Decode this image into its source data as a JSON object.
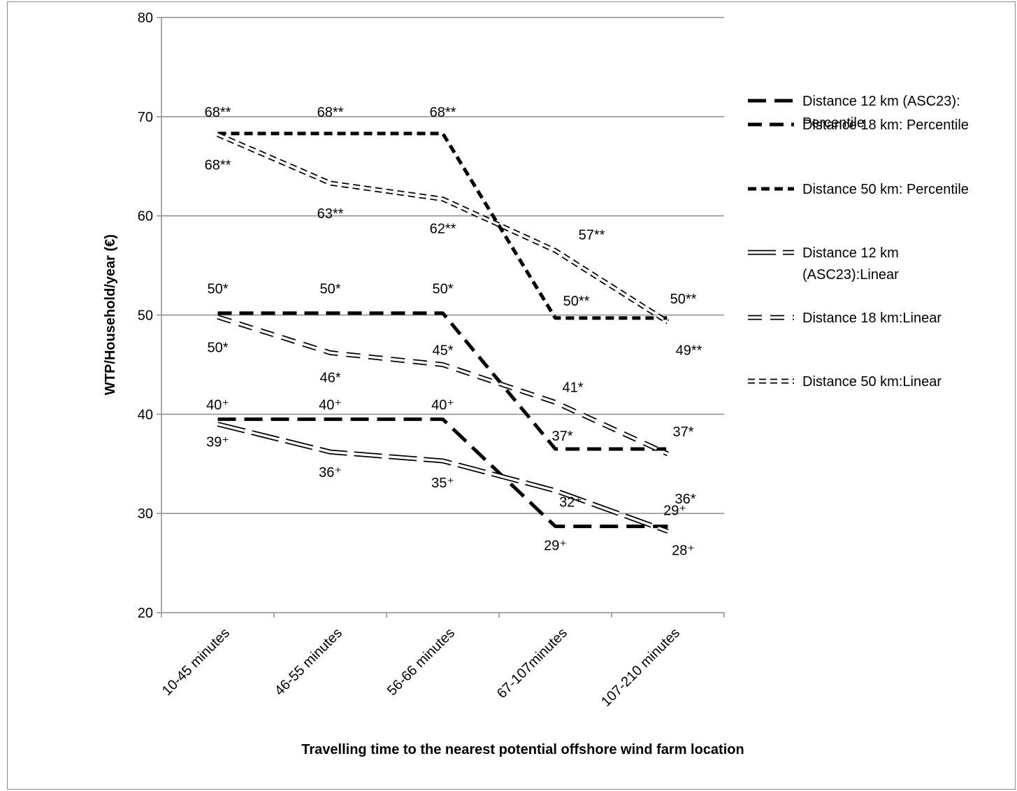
{
  "chart_data": {
    "type": "line",
    "title": "",
    "xlabel": "Travelling time to the nearest potential offshore wind farm location",
    "ylabel": "WTP/Household/year (€)",
    "ylim": [
      20,
      80
    ],
    "yticks": [
      20,
      30,
      40,
      50,
      60,
      70,
      80
    ],
    "grid": true,
    "legend_position": "right",
    "categories": [
      "10-45 minutes",
      "46-55 minutes",
      "56-66 minutes",
      "67-107minutes",
      "107-210 minutes"
    ],
    "series": [
      {
        "name": "Distance 12 km (ASC23): Percentile",
        "style": "percentile-longdash",
        "values": [
          39.5,
          39.5,
          39.5,
          28.7,
          28.7
        ],
        "labels": [
          "40⁺",
          "40⁺",
          "40⁺",
          "29⁺",
          "29⁺"
        ]
      },
      {
        "name": "Distance 18 km: Percentile",
        "style": "percentile-dash",
        "values": [
          50.2,
          50.2,
          50.2,
          36.5,
          36.5
        ],
        "labels": [
          "50*",
          "50*",
          "50*",
          "37*",
          "37*"
        ]
      },
      {
        "name": "Distance 50 km: Percentile",
        "style": "percentile-shortdash",
        "values": [
          68.3,
          68.3,
          68.3,
          49.7,
          49.7
        ],
        "labels": [
          "68**",
          "68**",
          "68**",
          "50**",
          "50**"
        ]
      },
      {
        "name": "Distance 12 km (ASC23):Linear",
        "style": "linear-longdash",
        "values": [
          39.0,
          36.2,
          35.3,
          32.3,
          28.2
        ],
        "labels": [
          "39⁺",
          "36⁺",
          "35⁺",
          "32⁺",
          "28⁺"
        ]
      },
      {
        "name": "Distance 18 km:Linear",
        "style": "linear-dash",
        "values": [
          49.8,
          46.2,
          45.0,
          41.2,
          36.0
        ],
        "labels": [
          "50*",
          "46*",
          "45*",
          "41*",
          "36*"
        ]
      },
      {
        "name": "Distance 50 km:Linear",
        "style": "linear-shortdash",
        "values": [
          68.2,
          63.3,
          61.7,
          56.5,
          49.3
        ],
        "labels": [
          "68**",
          "63**",
          "62**",
          "57**",
          "49**"
        ]
      }
    ],
    "colors": {
      "line": "#000000",
      "grid": "#8c8c8c",
      "background": "#ffffff"
    }
  }
}
